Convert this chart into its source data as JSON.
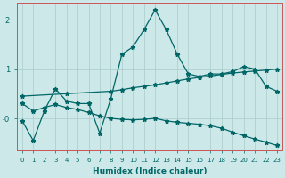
{
  "xlabel": "Humidex (Indice chaleur)",
  "bg_color": "#cde8e8",
  "line_color": "#006666",
  "grid_color": "#aacccc",
  "xlim": [
    -0.5,
    23.5
  ],
  "ylim": [
    -0.65,
    2.35
  ],
  "line1_x": [
    0,
    1,
    2,
    3,
    4,
    5,
    6,
    7,
    8,
    9,
    10,
    11,
    12,
    13,
    14,
    15,
    16,
    17,
    18,
    19,
    20,
    21,
    22,
    23
  ],
  "line1_y": [
    -0.05,
    -0.45,
    0.15,
    0.6,
    0.35,
    0.3,
    0.3,
    -0.3,
    0.4,
    1.3,
    1.45,
    1.8,
    2.2,
    1.8,
    1.3,
    0.9,
    0.85,
    0.9,
    0.9,
    0.95,
    1.05,
    1.0,
    0.65,
    0.55
  ],
  "line2_x": [
    0,
    4,
    8,
    9,
    10,
    11,
    12,
    13,
    14,
    15,
    16,
    17,
    18,
    19,
    20,
    21,
    22,
    23
  ],
  "line2_y": [
    0.45,
    0.5,
    0.55,
    0.58,
    0.62,
    0.65,
    0.68,
    0.72,
    0.76,
    0.8,
    0.83,
    0.86,
    0.89,
    0.92,
    0.94,
    0.96,
    0.98,
    1.0
  ],
  "line3_x": [
    0,
    1,
    2,
    3,
    4,
    5,
    6,
    7,
    8,
    9,
    10,
    11,
    12,
    13,
    14,
    15,
    16,
    17,
    18,
    19,
    20,
    21,
    22,
    23
  ],
  "line3_y": [
    0.3,
    0.15,
    0.22,
    0.28,
    0.22,
    0.18,
    0.12,
    0.05,
    0.0,
    -0.02,
    -0.03,
    -0.02,
    0.0,
    -0.05,
    -0.08,
    -0.1,
    -0.12,
    -0.15,
    -0.2,
    -0.28,
    -0.35,
    -0.42,
    -0.48,
    -0.55
  ]
}
